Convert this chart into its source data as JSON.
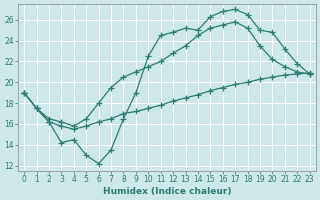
{
  "xlabel": "Humidex (Indice chaleur)",
  "bg_color": "#cce8e8",
  "line_color": "#2e7d72",
  "grid_color": "#b0d0d0",
  "xlim": [
    -0.5,
    23.5
  ],
  "ylim": [
    11.5,
    27.5
  ],
  "xticks": [
    0,
    1,
    2,
    3,
    4,
    5,
    6,
    7,
    8,
    9,
    10,
    11,
    12,
    13,
    14,
    15,
    16,
    17,
    18,
    19,
    20,
    21,
    22,
    23
  ],
  "yticks": [
    12,
    14,
    16,
    18,
    20,
    22,
    24,
    26
  ],
  "line1_x": [
    0,
    1,
    2,
    3,
    4,
    5,
    6,
    7,
    8,
    9,
    10,
    11,
    12,
    13,
    14,
    15,
    16,
    17,
    18,
    19,
    20,
    21,
    22,
    23
  ],
  "line1_y": [
    19.0,
    17.5,
    16.2,
    14.2,
    14.5,
    13.0,
    12.2,
    13.5,
    16.5,
    19.0,
    22.5,
    24.5,
    24.8,
    25.2,
    25.0,
    26.3,
    26.8,
    27.0,
    26.5,
    25.0,
    24.8,
    23.2,
    21.8,
    20.8
  ],
  "line2_x": [
    0,
    1,
    2,
    3,
    4,
    5,
    6,
    7,
    8,
    9,
    10,
    11,
    12,
    13,
    14,
    15,
    16,
    17,
    18,
    19,
    20,
    21,
    22,
    23
  ],
  "line2_y": [
    19.0,
    17.5,
    16.5,
    16.2,
    15.8,
    16.5,
    18.0,
    19.5,
    20.5,
    21.0,
    21.5,
    22.0,
    22.8,
    23.5,
    24.5,
    25.2,
    25.5,
    25.8,
    25.2,
    23.5,
    22.2,
    21.5,
    21.0,
    20.8
  ],
  "line3_x": [
    0,
    1,
    2,
    3,
    4,
    5,
    6,
    7,
    8,
    9,
    10,
    11,
    12,
    13,
    14,
    15,
    16,
    17,
    18,
    19,
    20,
    21,
    22,
    23
  ],
  "line3_y": [
    19.0,
    17.5,
    16.2,
    15.8,
    15.5,
    15.8,
    16.2,
    16.5,
    17.0,
    17.2,
    17.5,
    17.8,
    18.2,
    18.5,
    18.8,
    19.2,
    19.5,
    19.8,
    20.0,
    20.3,
    20.5,
    20.7,
    20.8,
    20.9
  ]
}
